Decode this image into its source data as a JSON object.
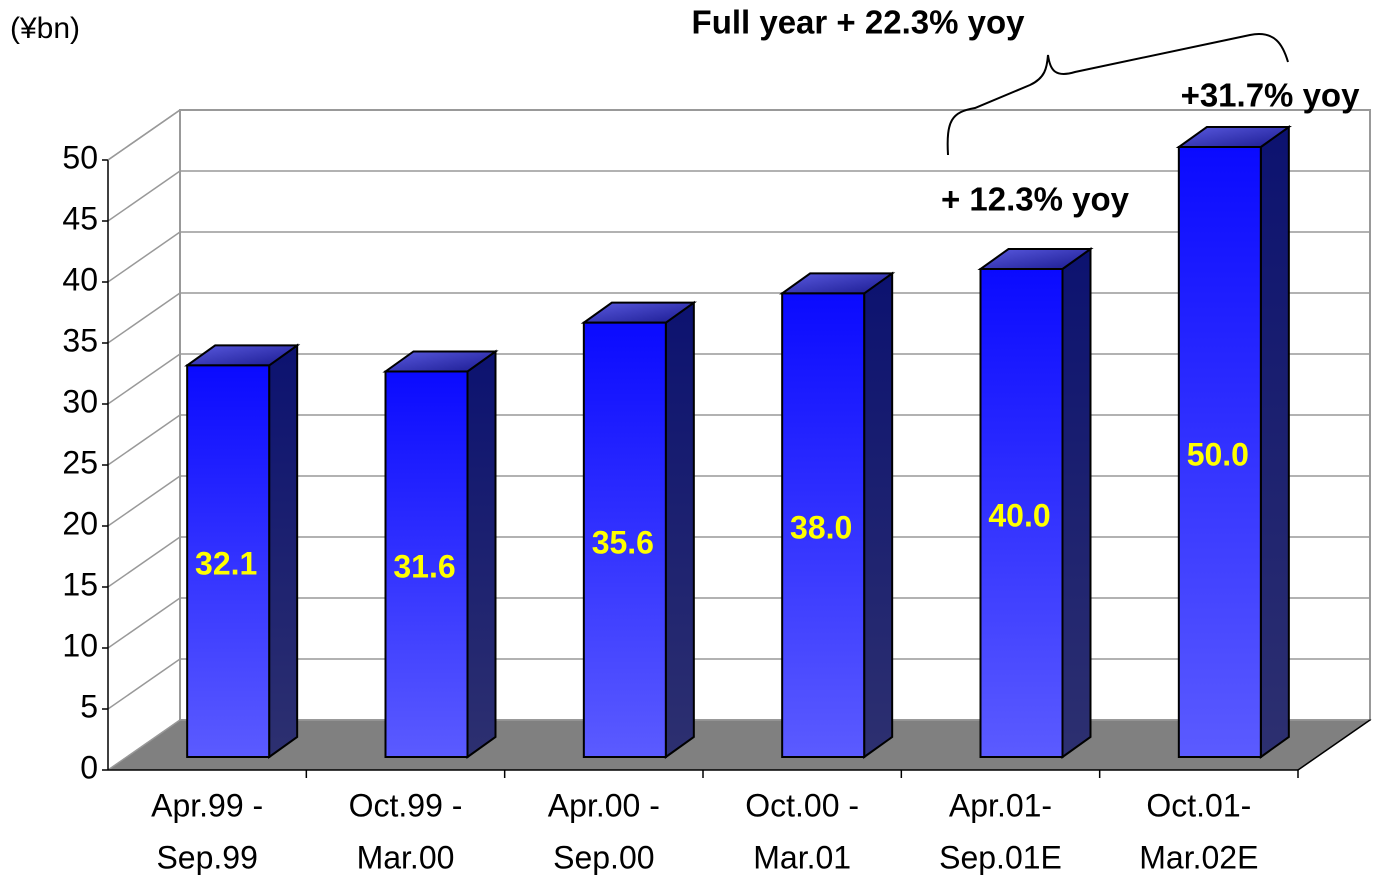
{
  "chart_data": {
    "type": "bar3d",
    "unit_label": "(¥bn)",
    "annotations": [
      "Full year + 22.3% yoy",
      "+31.7% yoy",
      "+ 12.3% yoy"
    ],
    "categories": [
      [
        "Apr.99 -",
        "Sep.99"
      ],
      [
        "Oct.99 -",
        "Mar.00"
      ],
      [
        "Apr.00 -",
        "Sep.00"
      ],
      [
        "Oct.00 -",
        "Mar.01"
      ],
      [
        "Apr.01-",
        "Sep.01E"
      ],
      [
        "Oct.01-",
        "Mar.02E"
      ]
    ],
    "values": [
      32.1,
      31.6,
      35.6,
      38.0,
      40.0,
      50.0
    ],
    "value_labels": [
      "32.1",
      "31.6",
      "35.6",
      "38.0",
      "40.0",
      "50.0"
    ],
    "color": "#1414ff",
    "ylim": [
      0,
      50
    ],
    "yticks": [
      0,
      5,
      10,
      15,
      20,
      25,
      30,
      35,
      40,
      45,
      50
    ],
    "grid": true
  }
}
